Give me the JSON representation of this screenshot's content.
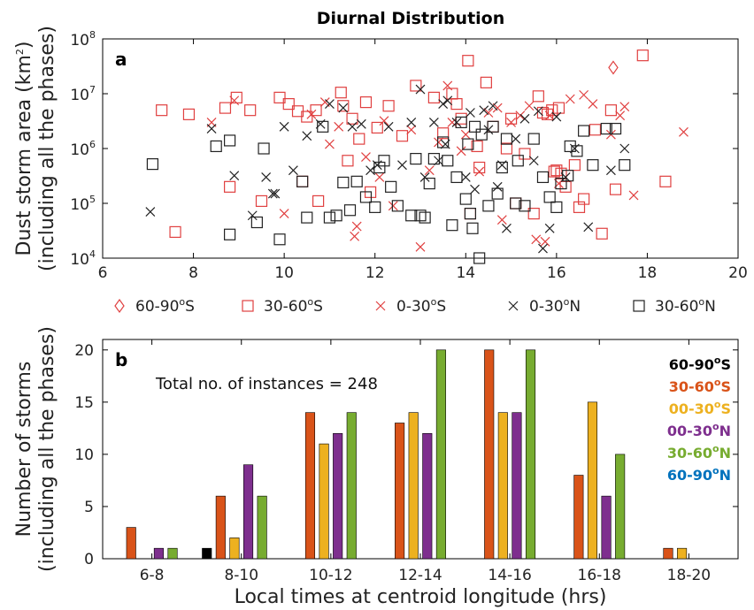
{
  "title": "Diurnal Distribution",
  "chart_data": [
    {
      "type": "scatter",
      "panel": "a",
      "xlabel": "",
      "ylabel_line1": "Dust storm area (km",
      "ylabel_sup": "2",
      "ylabel_line1_end": ")",
      "ylabel_line2": "(including all the phases)",
      "xlim": [
        6,
        20
      ],
      "ylim": [
        10000,
        100000000
      ],
      "yscale": "log",
      "xticks": [
        "6",
        "8",
        "10",
        "12",
        "14",
        "16",
        "18",
        "20"
      ],
      "yticks": [
        {
          "base": "10",
          "exp": "4",
          "value": 10000
        },
        {
          "base": "10",
          "exp": "5",
          "value": 100000
        },
        {
          "base": "10",
          "exp": "6",
          "value": 1000000
        },
        {
          "base": "10",
          "exp": "7",
          "value": 10000000
        },
        {
          "base": "10",
          "exp": "8",
          "value": 100000000
        }
      ],
      "legend_placement": "below",
      "legend": [
        {
          "pre": "60-90",
          "sup": "o",
          "post": "S",
          "marker": "diamond",
          "color": "#e04040"
        },
        {
          "pre": "30-60",
          "sup": "o",
          "post": "S",
          "marker": "square",
          "color": "#e04040"
        },
        {
          "pre": "0-30",
          "sup": "o",
          "post": "S",
          "marker": "x",
          "color": "#e04040"
        },
        {
          "pre": "0-30",
          "sup": "o",
          "post": "N",
          "marker": "x",
          "color": "#222222"
        },
        {
          "pre": "30-60",
          "sup": "o",
          "post": "N",
          "marker": "square",
          "color": "#222222"
        }
      ],
      "series": [
        {
          "name": "60-90°S",
          "marker": "diamond",
          "color": "#e04040",
          "points": [
            [
              17.25,
              30000000
            ]
          ]
        },
        {
          "name": "30-60°S",
          "marker": "square",
          "color": "#e04040",
          "points": [
            [
              7.3,
              5000000
            ],
            [
              7.6,
              30000
            ],
            [
              7.9,
              4200000
            ],
            [
              8.7,
              5500000
            ],
            [
              8.8,
              200000
            ],
            [
              8.95,
              8500000
            ],
            [
              9.25,
              5000000
            ],
            [
              9.5,
              110000
            ],
            [
              9.9,
              8500000
            ],
            [
              10.1,
              6500000
            ],
            [
              10.3,
              4800000
            ],
            [
              10.4,
              250000
            ],
            [
              10.5,
              3800000
            ],
            [
              10.7,
              5000000
            ],
            [
              10.75,
              110000
            ],
            [
              11.25,
              10500000
            ],
            [
              11.3,
              6000000
            ],
            [
              11.4,
              600000
            ],
            [
              11.5,
              3500000
            ],
            [
              11.8,
              7000000
            ],
            [
              11.9,
              160000
            ],
            [
              12.05,
              2400000
            ],
            [
              12.3,
              6000000
            ],
            [
              12.6,
              1700000
            ],
            [
              13.3,
              8500000
            ],
            [
              13.5,
              1900000
            ],
            [
              13.7,
              10000000
            ],
            [
              13.8,
              6500000
            ],
            [
              13.9,
              3500000
            ],
            [
              14.05,
              40000000
            ],
            [
              14.1,
              65000
            ],
            [
              14.25,
              1100000
            ],
            [
              14.3,
              450000
            ],
            [
              14.45,
              16000000
            ],
            [
              14.6,
              2500000
            ],
            [
              14.9,
              1000000
            ],
            [
              15.0,
              3500000
            ],
            [
              15.1,
              100000
            ],
            [
              15.3,
              800000
            ],
            [
              15.5,
              65000
            ],
            [
              15.6,
              9000000
            ],
            [
              15.7,
              4500000
            ],
            [
              15.8,
              4200000
            ],
            [
              15.9,
              5000000
            ],
            [
              16.0,
              400000
            ],
            [
              16.05,
              5500000
            ],
            [
              16.1,
              350000
            ],
            [
              16.2,
              200000
            ],
            [
              16.4,
              500000
            ],
            [
              16.5,
              85000
            ],
            [
              16.6,
              120000
            ],
            [
              16.85,
              2200000
            ],
            [
              17.2,
              5000000
            ],
            [
              17.3,
              180000
            ],
            [
              17.9,
              50000000
            ],
            [
              18.4,
              250000
            ],
            [
              15.95,
              380000
            ],
            [
              11.65,
              1500000
            ],
            [
              12.9,
              14000000
            ],
            [
              17.0,
              28000
            ]
          ]
        },
        {
          "name": "0-30°S",
          "marker": "x",
          "color": "#e04040",
          "points": [
            [
              8.4,
              3000000
            ],
            [
              8.9,
              7500000
            ],
            [
              10.0,
              65000
            ],
            [
              10.6,
              4200000
            ],
            [
              11.0,
              1200000
            ],
            [
              11.2,
              2500000
            ],
            [
              11.55,
              25000
            ],
            [
              11.8,
              700000
            ],
            [
              12.2,
              3200000
            ],
            [
              12.4,
              90000
            ],
            [
              12.8,
              2200000
            ],
            [
              13.0,
              16000
            ],
            [
              13.2,
              400000
            ],
            [
              13.4,
              1300000
            ],
            [
              13.6,
              14000000
            ],
            [
              13.7,
              3000000
            ],
            [
              14.0,
              1800000
            ],
            [
              14.3,
              380000
            ],
            [
              14.5,
              4500000
            ],
            [
              14.7,
              5500000
            ],
            [
              14.8,
              50000
            ],
            [
              15.0,
              3000000
            ],
            [
              15.2,
              4000000
            ],
            [
              15.4,
              6000000
            ],
            [
              15.55,
              22000
            ],
            [
              15.75,
              20000
            ],
            [
              15.85,
              4000000
            ],
            [
              16.3,
              8000000
            ],
            [
              16.6,
              9500000
            ],
            [
              16.8,
              6500000
            ],
            [
              17.2,
              1800000
            ],
            [
              17.4,
              4000000
            ],
            [
              17.5,
              5800000
            ],
            [
              17.7,
              140000
            ],
            [
              18.8,
              2000000
            ],
            [
              12.1,
              300000
            ],
            [
              13.9,
              900000
            ],
            [
              10.9,
              7000000
            ],
            [
              11.6,
              38000
            ],
            [
              16.05,
              230000
            ]
          ]
        },
        {
          "name": "0-30°N",
          "marker": "x",
          "color": "#222222",
          "points": [
            [
              7.05,
              70000
            ],
            [
              8.4,
              2300000
            ],
            [
              8.9,
              320000
            ],
            [
              9.3,
              60000
            ],
            [
              9.75,
              150000
            ],
            [
              9.8,
              150000
            ],
            [
              10.0,
              2500000
            ],
            [
              10.2,
              400000
            ],
            [
              10.5,
              1700000
            ],
            [
              10.8,
              2800000
            ],
            [
              11.0,
              6500000
            ],
            [
              11.3,
              5500000
            ],
            [
              11.5,
              2500000
            ],
            [
              11.9,
              400000
            ],
            [
              12.05,
              500000
            ],
            [
              12.3,
              2500000
            ],
            [
              12.6,
              500000
            ],
            [
              12.8,
              3000000
            ],
            [
              13.0,
              12000000
            ],
            [
              13.1,
              300000
            ],
            [
              13.3,
              3000000
            ],
            [
              13.4,
              600000
            ],
            [
              13.5,
              6500000
            ],
            [
              13.6,
              7500000
            ],
            [
              13.8,
              3000000
            ],
            [
              14.0,
              300000
            ],
            [
              14.1,
              4500000
            ],
            [
              14.2,
              180000
            ],
            [
              14.4,
              5000000
            ],
            [
              14.5,
              2200000
            ],
            [
              14.6,
              6000000
            ],
            [
              14.7,
              200000
            ],
            [
              14.8,
              500000
            ],
            [
              14.9,
              35000
            ],
            [
              15.1,
              1500000
            ],
            [
              15.3,
              3500000
            ],
            [
              15.5,
              600000
            ],
            [
              15.6,
              4800000
            ],
            [
              15.7,
              15000
            ],
            [
              15.85,
              35000
            ],
            [
              16.0,
              3800000
            ],
            [
              16.2,
              300000
            ],
            [
              16.4,
              1000000
            ],
            [
              16.7,
              37000
            ],
            [
              17.2,
              400000
            ],
            [
              17.5,
              1000000
            ],
            [
              13.55,
              1200000
            ],
            [
              11.7,
              2800000
            ],
            [
              9.6,
              300000
            ]
          ]
        },
        {
          "name": "30-60°N",
          "marker": "square",
          "color": "#222222",
          "points": [
            [
              7.1,
              520000
            ],
            [
              8.5,
              1100000
            ],
            [
              8.8,
              27000
            ],
            [
              8.8,
              1400000
            ],
            [
              9.4,
              45000
            ],
            [
              9.55,
              1000000
            ],
            [
              9.9,
              22000
            ],
            [
              10.4,
              250000
            ],
            [
              10.5,
              55000
            ],
            [
              11.0,
              55000
            ],
            [
              11.15,
              60000
            ],
            [
              11.3,
              240000
            ],
            [
              11.45,
              75000
            ],
            [
              11.6,
              250000
            ],
            [
              11.8,
              130000
            ],
            [
              12.0,
              85000
            ],
            [
              12.1,
              450000
            ],
            [
              12.2,
              600000
            ],
            [
              12.5,
              90000
            ],
            [
              12.8,
              60000
            ],
            [
              12.9,
              650000
            ],
            [
              13.1,
              55000
            ],
            [
              13.2,
              230000
            ],
            [
              13.3,
              650000
            ],
            [
              13.5,
              1300000
            ],
            [
              13.6,
              600000
            ],
            [
              13.7,
              40000
            ],
            [
              13.8,
              300000
            ],
            [
              13.9,
              3000000
            ],
            [
              14.0,
              120000
            ],
            [
              14.1,
              65000
            ],
            [
              14.2,
              2500000
            ],
            [
              14.3,
              10000
            ],
            [
              14.35,
              1800000
            ],
            [
              14.5,
              90000
            ],
            [
              14.6,
              2500000
            ],
            [
              14.7,
              150000
            ],
            [
              14.8,
              450000
            ],
            [
              14.9,
              1500000
            ],
            [
              15.1,
              100000
            ],
            [
              15.3,
              90000
            ],
            [
              15.5,
              1500000
            ],
            [
              15.7,
              300000
            ],
            [
              15.85,
              130000
            ],
            [
              16.0,
              85000
            ],
            [
              16.1,
              230000
            ],
            [
              16.3,
              1100000
            ],
            [
              16.45,
              900000
            ],
            [
              16.6,
              2100000
            ],
            [
              16.8,
              500000
            ],
            [
              17.1,
              2300000
            ],
            [
              17.3,
              2300000
            ],
            [
              17.5,
              500000
            ],
            [
              14.05,
              1200000
            ],
            [
              12.35,
              200000
            ],
            [
              13.0,
              60000
            ],
            [
              10.85,
              2500000
            ],
            [
              15.15,
              600000
            ],
            [
              14.15,
              35000
            ],
            [
              16.25,
              320000
            ]
          ]
        }
      ]
    },
    {
      "type": "bar",
      "panel": "b",
      "annotation": "Total no. of instances = 248",
      "xlabel": "Local times at centroid longitude (hrs)",
      "ylabel_line1": "Number of storms",
      "ylabel_line2": "(including all the phases)",
      "ylim": [
        0,
        21
      ],
      "yticks": [
        "0",
        "5",
        "10",
        "15",
        "20"
      ],
      "categories": [
        "6-8",
        "8-10",
        "10-12",
        "12-14",
        "14-16",
        "16-18",
        "18-20"
      ],
      "legend_placement": "top-right",
      "series": [
        {
          "name": "60-90°S",
          "label_pre": "60-90",
          "label_post": "S",
          "color": "#000000",
          "values": [
            0,
            1,
            0,
            0,
            0,
            0,
            0
          ]
        },
        {
          "name": "30-60°S",
          "label_pre": "30-60",
          "label_post": "S",
          "color": "#d95319",
          "values": [
            3,
            6,
            14,
            13,
            20,
            8,
            1
          ]
        },
        {
          "name": "00-30°S",
          "label_pre": "00-30",
          "label_post": "S",
          "color": "#edb120",
          "values": [
            0,
            2,
            11,
            14,
            14,
            15,
            1
          ]
        },
        {
          "name": "00-30°N",
          "label_pre": "00-30",
          "label_post": "N",
          "color": "#7e2f8e",
          "values": [
            1,
            9,
            12,
            12,
            14,
            6,
            0
          ]
        },
        {
          "name": "30-60°N",
          "label_pre": "30-60",
          "label_post": "N",
          "color": "#77ac30",
          "values": [
            1,
            6,
            14,
            20,
            20,
            10,
            0
          ]
        },
        {
          "name": "60-90°N",
          "label_pre": "60-90",
          "label_post": "N",
          "color": "#0072bd",
          "values": [
            0,
            0,
            0,
            0,
            0,
            0,
            0
          ]
        }
      ]
    }
  ]
}
